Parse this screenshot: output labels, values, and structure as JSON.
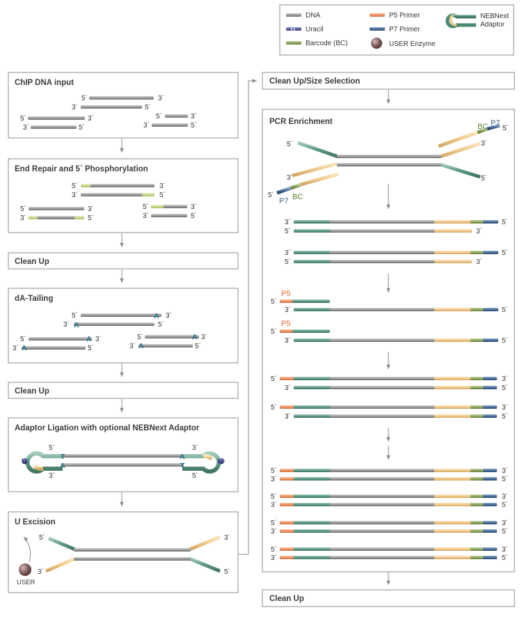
{
  "legend": {
    "dna": "DNA",
    "uracil": "Uracil",
    "uracil_symbol": "U",
    "barcode": "Barcode (BC)",
    "p5_primer": "P5 Primer",
    "p7_primer": "P7 Primer",
    "user_enzyme": "USER Enzyme",
    "adaptor_line1": "NEBNext",
    "adaptor_line2": "Adaptor"
  },
  "steps": {
    "chip_input": "ChIP DNA input",
    "end_repair": "End Repair and 5´ Phosphorylation",
    "clean_up_1": "Clean Up",
    "da_tailing": "dA-Tailing",
    "clean_up_2": "Clean Up",
    "adaptor_ligation": "Adaptor Ligation with optional NEBNext Adaptor",
    "u_excision": "U Excision",
    "size_selection": "Clean Up/Size Selection",
    "pcr_enrichment": "PCR Enrichment",
    "clean_up_final": "Clean Up"
  },
  "labels": {
    "five": "5´",
    "three": "3´",
    "a": "A",
    "t": "T",
    "u": "U",
    "p5": "P5",
    "p7": "P7",
    "bc": "BC",
    "user": "USER"
  },
  "colors": {
    "dna": "#9a9a9a",
    "uracil": "#5a5f98",
    "barcode": "#93a86a",
    "p5": "#ef9466",
    "p7": "#4b6e9c",
    "adaptor_green": "#5e9a82",
    "adaptor_yellow": "#eec88a",
    "phospho": "#c9dc8c",
    "base_text": "#1f6e88",
    "user_enzyme": "#7d5a5a"
  }
}
